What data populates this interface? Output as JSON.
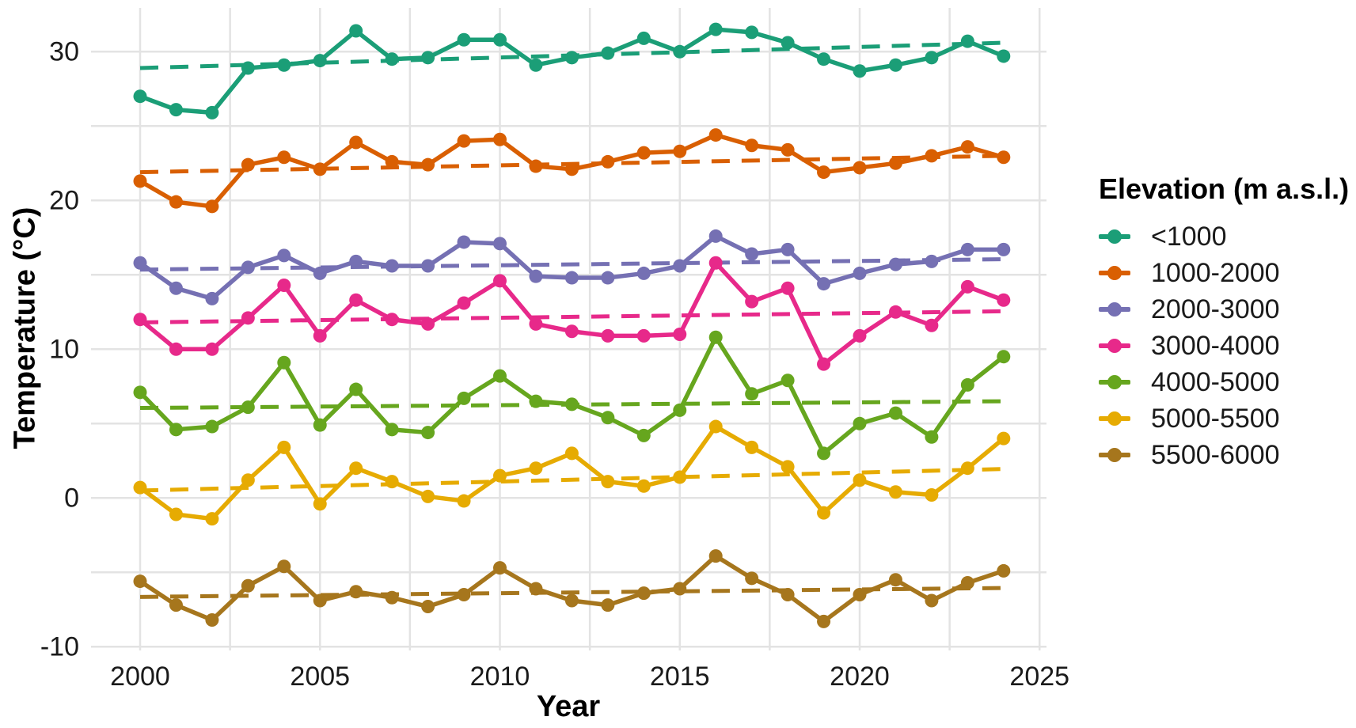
{
  "chart_data": {
    "type": "line",
    "title": "",
    "xlabel": "Year",
    "ylabel": "Temperature (°C)",
    "legend_title": "Elevation (m a.s.l.)",
    "legend_position": "right",
    "grid": true,
    "x_tick_labels": [
      2000,
      2005,
      2010,
      2015,
      2020,
      2025
    ],
    "x_gridline_step_years": 2.5,
    "y_tick_labels": [
      30,
      20,
      10,
      0,
      -10
    ],
    "y_gridline_step": 5,
    "xlim": [
      1998.6,
      2025.2
    ],
    "ylim": [
      -10.3,
      32.8
    ],
    "years": [
      2000,
      2001,
      2002,
      2003,
      2004,
      2005,
      2006,
      2007,
      2008,
      2009,
      2010,
      2011,
      2012,
      2013,
      2014,
      2015,
      2016,
      2017,
      2018,
      2019,
      2020,
      2021,
      2022,
      2023,
      2024
    ],
    "series": [
      {
        "name": "<1000",
        "color": "#1B9E77",
        "values": [
          27.0,
          26.1,
          25.9,
          28.9,
          29.1,
          29.4,
          31.4,
          29.5,
          29.6,
          30.8,
          30.8,
          29.1,
          29.6,
          29.9,
          30.9,
          30.0,
          31.5,
          31.3,
          30.6,
          29.5,
          28.7,
          29.1,
          29.6,
          30.7,
          29.7
        ],
        "trend": [
          28.9,
          30.6
        ]
      },
      {
        "name": "1000-2000",
        "color": "#D95F02",
        "values": [
          21.3,
          19.9,
          19.6,
          22.4,
          22.9,
          22.1,
          23.9,
          22.6,
          22.4,
          24.0,
          24.1,
          22.3,
          22.1,
          22.6,
          23.2,
          23.3,
          24.4,
          23.7,
          23.4,
          21.9,
          22.2,
          22.5,
          23.0,
          23.6,
          22.9
        ],
        "trend": [
          21.9,
          23.0
        ]
      },
      {
        "name": "2000-3000",
        "color": "#7570B3",
        "values": [
          15.8,
          14.1,
          13.4,
          15.5,
          16.3,
          15.1,
          15.9,
          15.6,
          15.6,
          17.2,
          17.1,
          14.9,
          14.8,
          14.8,
          15.1,
          15.6,
          17.6,
          16.4,
          16.7,
          14.4,
          15.1,
          15.7,
          15.9,
          16.7,
          16.7
        ],
        "trend": [
          15.35,
          16.05
        ]
      },
      {
        "name": "3000-4000",
        "color": "#E7298A",
        "values": [
          12.0,
          10.0,
          10.0,
          12.1,
          14.3,
          10.9,
          13.3,
          12.0,
          11.7,
          13.1,
          14.6,
          11.7,
          11.2,
          10.9,
          10.9,
          11.0,
          15.8,
          13.2,
          14.1,
          9.0,
          10.9,
          12.5,
          11.6,
          14.2,
          13.3
        ],
        "trend": [
          11.8,
          12.55
        ]
      },
      {
        "name": "4000-5000",
        "color": "#66A61E",
        "values": [
          7.1,
          4.6,
          4.8,
          6.1,
          9.1,
          4.9,
          7.3,
          4.6,
          4.4,
          6.7,
          8.2,
          6.5,
          6.3,
          5.4,
          4.2,
          5.9,
          10.8,
          7.0,
          7.9,
          3.0,
          5.0,
          5.7,
          4.1,
          7.6,
          9.5
        ],
        "trend": [
          6.05,
          6.5
        ]
      },
      {
        "name": "5000-5500",
        "color": "#E6AB02",
        "values": [
          0.7,
          -1.1,
          -1.4,
          1.2,
          3.4,
          -0.4,
          2.0,
          1.1,
          0.1,
          -0.2,
          1.5,
          2.0,
          3.0,
          1.1,
          0.8,
          1.4,
          4.8,
          3.4,
          2.1,
          -1.0,
          1.2,
          0.4,
          0.2,
          2.0,
          4.0
        ],
        "trend": [
          0.5,
          1.95
        ]
      },
      {
        "name": "5500-6000",
        "color": "#A6761D",
        "values": [
          -5.6,
          -7.2,
          -8.2,
          -5.9,
          -4.6,
          -6.9,
          -6.3,
          -6.7,
          -7.3,
          -6.5,
          -4.7,
          -6.1,
          -6.9,
          -7.2,
          -6.4,
          -6.1,
          -3.9,
          -5.4,
          -6.5,
          -8.3,
          -6.5,
          -5.5,
          -6.9,
          -5.7,
          -4.9
        ],
        "trend": [
          -6.65,
          -6.05
        ]
      }
    ],
    "style": {
      "gridline_color": "#E3E3E3",
      "tick_label_color": "#1a1a1a",
      "background": "#ffffff"
    }
  }
}
